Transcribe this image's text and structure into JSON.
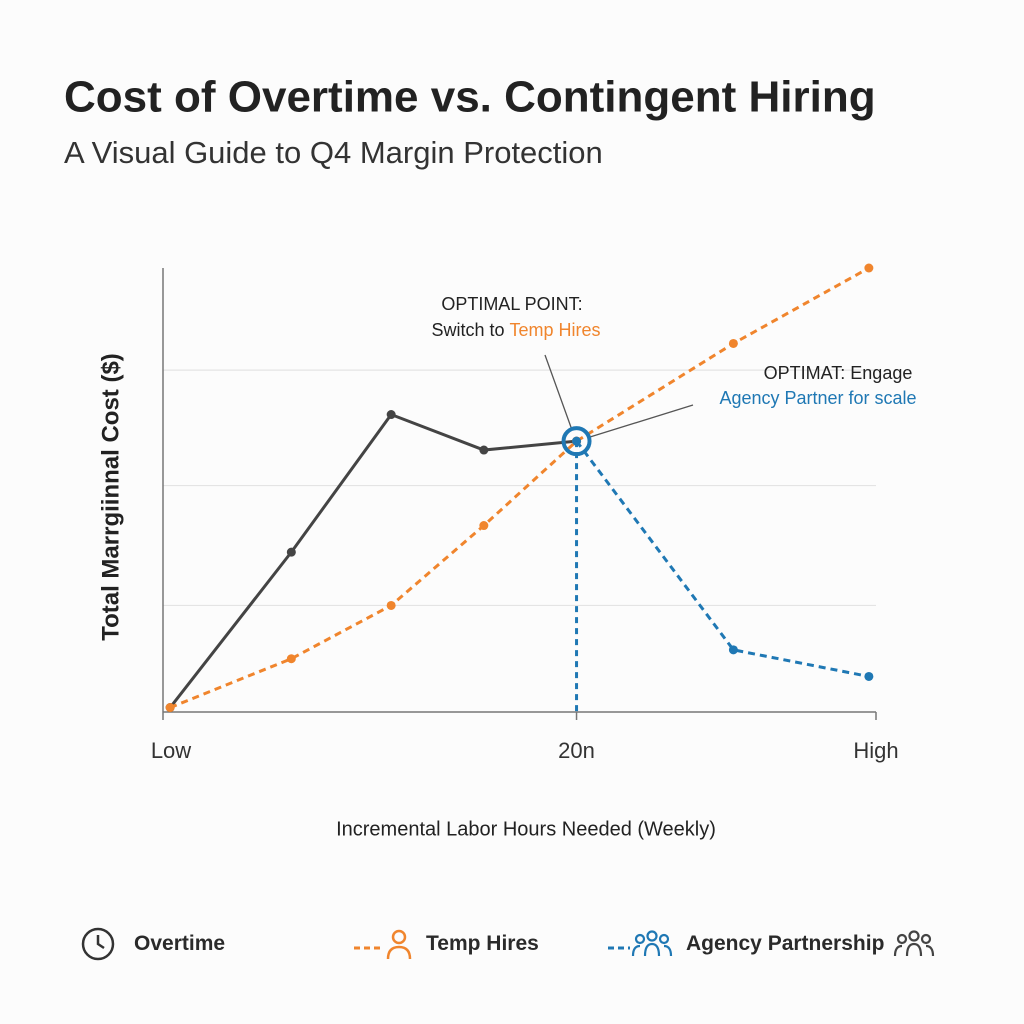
{
  "chart_data": {
    "type": "line",
    "title": "Cost of Overtime vs. Contingent Hiring",
    "subtitle": "A Visual Guide to Q4 Margin Protection",
    "y_label": "Total Marrgiinnal Cost ($)",
    "x_label": "Incremental Labor Hours Needed (Weekly)",
    "xlim": [
      0,
      100
    ],
    "ylim": [
      0,
      100
    ],
    "xticks": [
      {
        "value": 0,
        "label": "Low"
      },
      {
        "value": 58,
        "label": "20n"
      },
      {
        "value": 100,
        "label": "High"
      }
    ],
    "gridlines": [
      24,
      51,
      77
    ],
    "series": [
      {
        "name": "Overtime",
        "color": "#444444",
        "dash": false,
        "x": [
          1,
          18,
          32,
          45,
          58
        ],
        "values": [
          1,
          36,
          67,
          59,
          61
        ]
      },
      {
        "name": "Temp Hires",
        "color": "#f0852d",
        "dash": true,
        "x": [
          1,
          18,
          32,
          45,
          58,
          80,
          99
        ],
        "values": [
          1,
          12,
          24,
          42,
          61,
          83,
          100
        ]
      },
      {
        "name": "Agency Partnership",
        "color": "#1f78b4",
        "dash": true,
        "x": [
          58,
          80,
          99
        ],
        "values": [
          61,
          14,
          8
        ]
      }
    ],
    "annotations": [
      {
        "line1": "OPTIMAL POINT:",
        "line2": "Switch to",
        "highlight": "Temp Hires"
      },
      {
        "line1": "OPTIMAT: Engage",
        "highlight": "Agency Partner for scale"
      }
    ]
  }
}
